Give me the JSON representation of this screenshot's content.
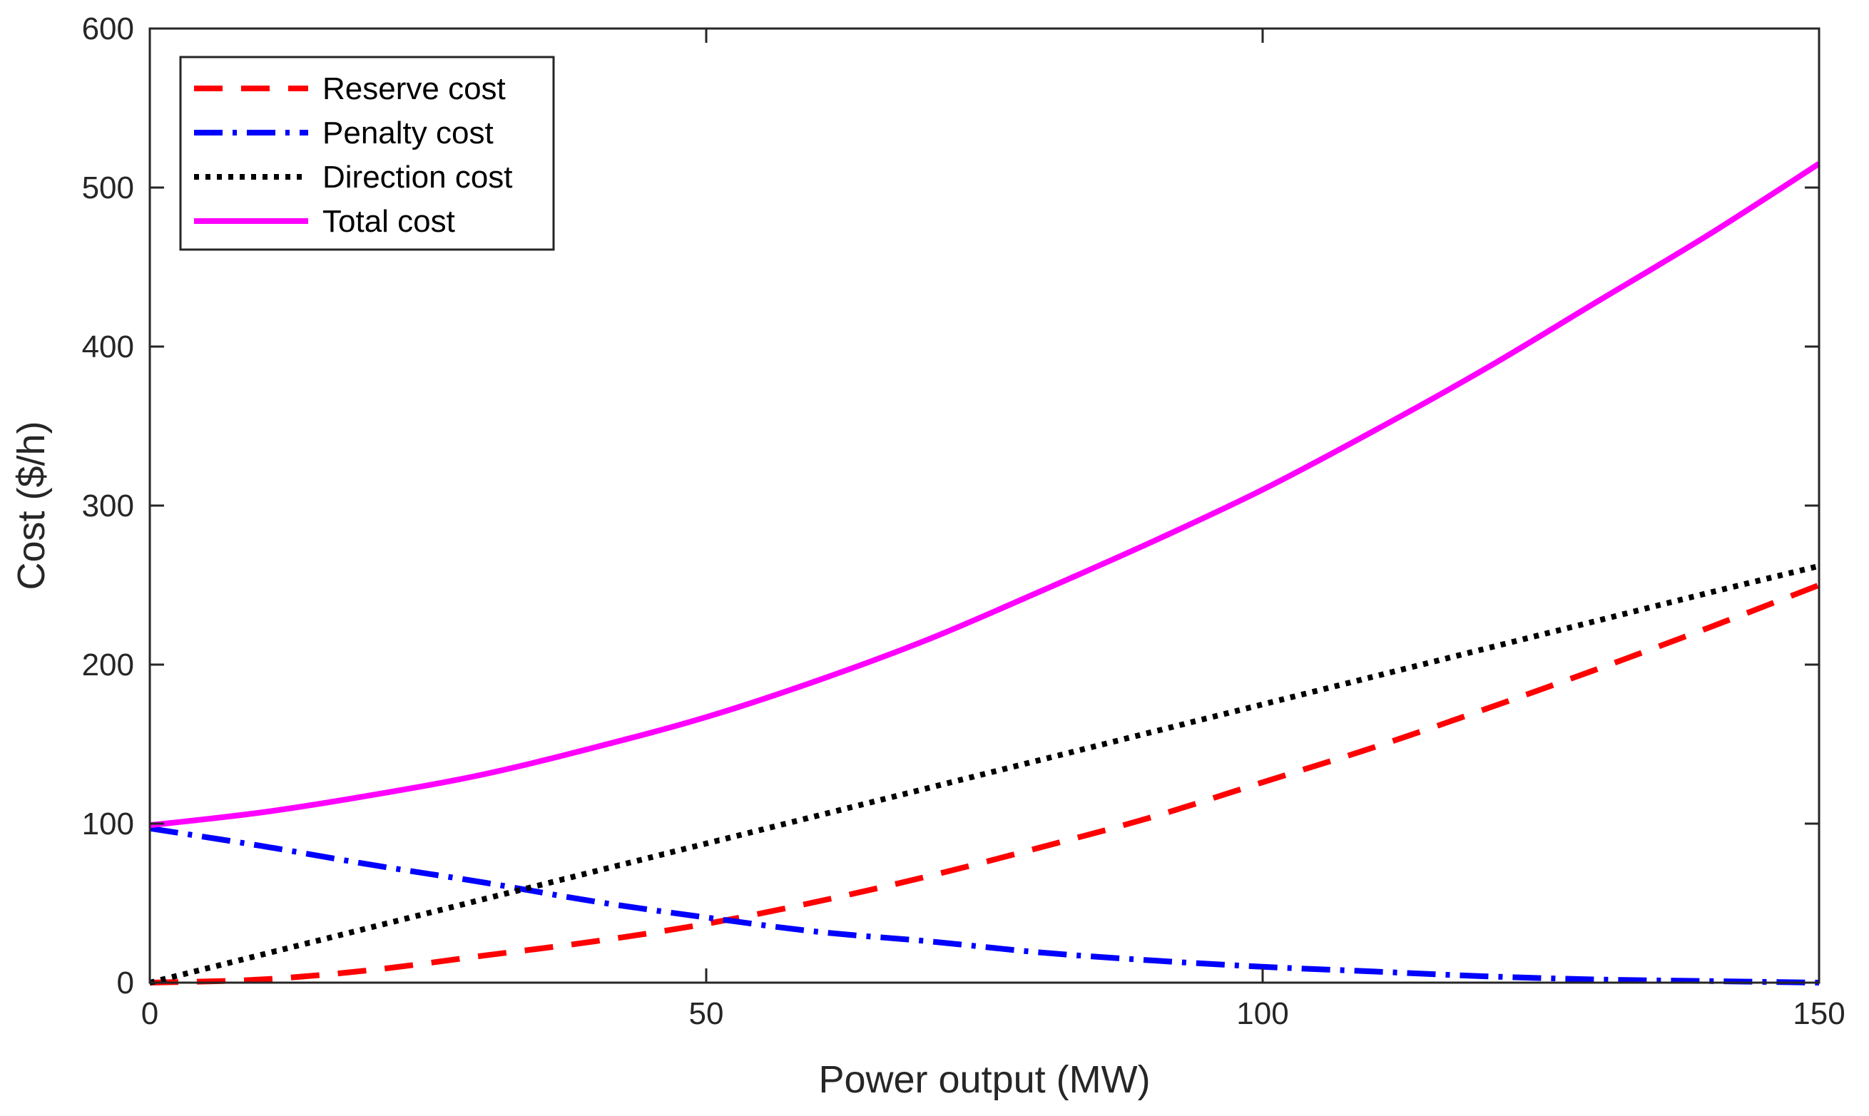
{
  "chart_data": {
    "type": "line",
    "title": "",
    "xlabel": "Power output (MW)",
    "ylabel": "Cost ($/h)",
    "xlim": [
      0,
      150
    ],
    "ylim": [
      0,
      600
    ],
    "xticks": [
      0,
      50,
      100,
      150
    ],
    "yticks": [
      0,
      100,
      200,
      300,
      400,
      500,
      600
    ],
    "grid": false,
    "legend_position": "top-left",
    "x": [
      0,
      10,
      20,
      30,
      40,
      50,
      60,
      70,
      80,
      90,
      100,
      110,
      120,
      130,
      140,
      150
    ],
    "series": [
      {
        "name": "Reserve cost",
        "color": "#ff0000",
        "style": "dashed",
        "values": [
          0,
          2,
          8,
          17,
          26,
          37,
          51,
          67,
          85,
          104,
          126,
          148,
          172,
          197,
          223,
          250
        ]
      },
      {
        "name": "Penalty cost",
        "color": "#0000ff",
        "style": "dash-dot",
        "values": [
          97,
          86,
          74,
          63,
          51,
          41,
          32,
          26,
          19,
          14,
          10,
          7,
          4,
          2,
          1,
          0
        ]
      },
      {
        "name": "Direction cost",
        "color": "#000000",
        "style": "dotted",
        "values": [
          0,
          17.5,
          35,
          52.5,
          70,
          87.5,
          105,
          122.5,
          140,
          157.5,
          175,
          192.5,
          210,
          227.5,
          245,
          262
        ]
      },
      {
        "name": "Total cost",
        "color": "#ff00ff",
        "style": "solid",
        "values": [
          99,
          107,
          118,
          131,
          148,
          167,
          190,
          216,
          246,
          277,
          310,
          347,
          386,
          428,
          470,
          515
        ]
      }
    ]
  }
}
